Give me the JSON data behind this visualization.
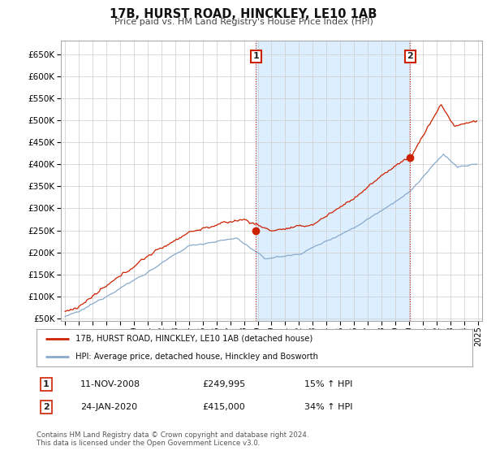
{
  "title": "17B, HURST ROAD, HINCKLEY, LE10 1AB",
  "subtitle": "Price paid vs. HM Land Registry's House Price Index (HPI)",
  "hpi_color": "#88aacc",
  "price_color": "#cc2200",
  "vline_color": "#cc2200",
  "shade_color": "#ddeeff",
  "background_color": "#ffffff",
  "grid_color": "#cccccc",
  "ylim": [
    45000,
    680000
  ],
  "yticks": [
    50000,
    100000,
    150000,
    200000,
    250000,
    300000,
    350000,
    400000,
    450000,
    500000,
    550000,
    600000,
    650000
  ],
  "xlim_start": 1994.7,
  "xlim_end": 2025.3,
  "ann1_x": 2008.87,
  "ann1_y": 249995,
  "ann2_x": 2020.07,
  "ann2_y": 415000,
  "legend_line1": "17B, HURST ROAD, HINCKLEY, LE10 1AB (detached house)",
  "legend_line2": "HPI: Average price, detached house, Hinckley and Bosworth",
  "footnote": "Contains HM Land Registry data © Crown copyright and database right 2024.\nThis data is licensed under the Open Government Licence v3.0.",
  "row1_num": "1",
  "row1_date": "11-NOV-2008",
  "row1_price": "£249,995",
  "row1_pct": "15% ↑ HPI",
  "row2_num": "2",
  "row2_date": "24-JAN-2020",
  "row2_price": "£415,000",
  "row2_pct": "34% ↑ HPI"
}
